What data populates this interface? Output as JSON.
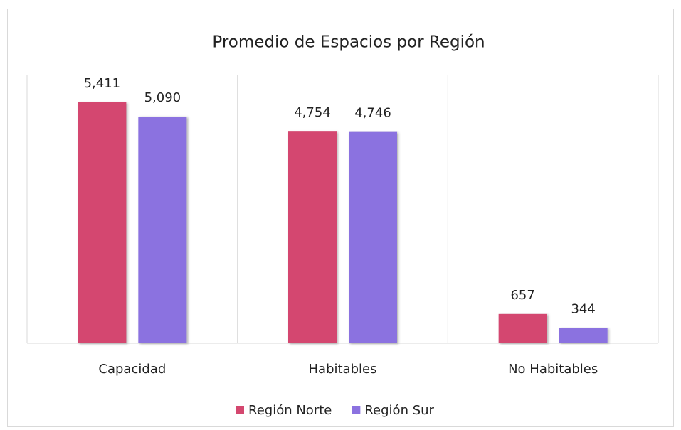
{
  "chart_data": {
    "type": "bar",
    "title": "Promedio de Espacios por Región",
    "categories": [
      "Capacidad",
      "Habitables",
      "No Habitables"
    ],
    "series": [
      {
        "name": "Región Norte",
        "color": "#d4476f",
        "values": [
          5411,
          4754,
          657
        ],
        "value_labels": [
          "5,411",
          "4,754",
          "657"
        ]
      },
      {
        "name": "Región Sur",
        "color": "#8b72e0",
        "values": [
          5090,
          4746,
          344
        ],
        "value_labels": [
          "5,090",
          "4,746",
          "344"
        ]
      }
    ],
    "legend": "bottom"
  }
}
